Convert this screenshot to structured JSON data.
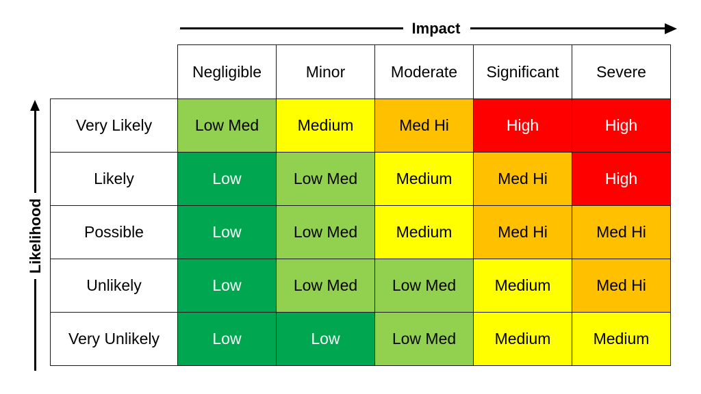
{
  "axes": {
    "impact_label": "Impact",
    "likelihood_label": "Likelihood"
  },
  "impact_levels": [
    "Negligible",
    "Minor",
    "Moderate",
    "Significant",
    "Severe"
  ],
  "likelihood_levels": [
    "Very Likely",
    "Likely",
    "Possible",
    "Unlikely",
    "Very Unlikely"
  ],
  "rating_colors": {
    "Low": "#00a650",
    "Low Med": "#92d050",
    "Medium": "#ffff00",
    "Med Hi": "#ffc000",
    "High": "#ff0000"
  },
  "matrix": [
    [
      "Low Med",
      "Medium",
      "Med Hi",
      "High",
      "High"
    ],
    [
      "Low",
      "Low Med",
      "Medium",
      "Med Hi",
      "High"
    ],
    [
      "Low",
      "Low Med",
      "Medium",
      "Med Hi",
      "Med Hi"
    ],
    [
      "Low",
      "Low Med",
      "Low Med",
      "Medium",
      "Med Hi"
    ],
    [
      "Low",
      "Low",
      "Low Med",
      "Medium",
      "Medium"
    ]
  ]
}
